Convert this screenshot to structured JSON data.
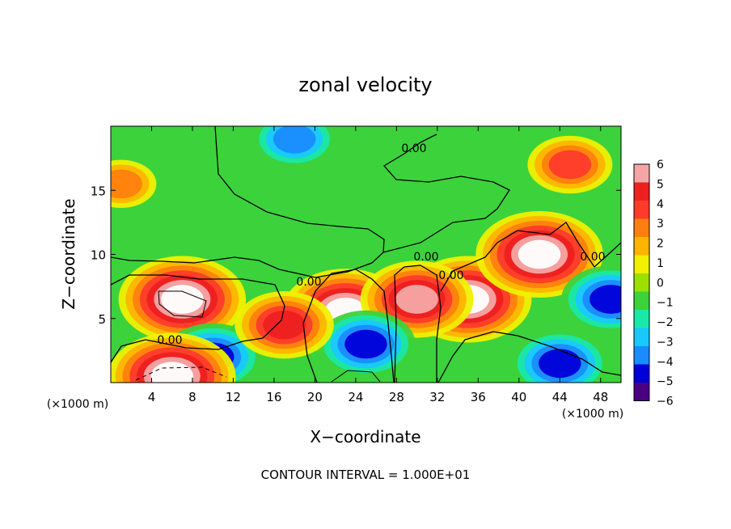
{
  "chart_data": {
    "type": "heatmap",
    "title": "zonal velocity",
    "xlabel": "X−coordinate",
    "ylabel": "Z−coordinate",
    "x_unit": "(×1000 m)",
    "x_unit_right": "(×1000 m)",
    "x_range": [
      0,
      50
    ],
    "y_range": [
      0,
      20
    ],
    "x_ticks": [
      4,
      8,
      12,
      16,
      20,
      24,
      28,
      32,
      36,
      40,
      44,
      48
    ],
    "y_ticks": [
      5,
      10,
      15
    ],
    "footer": "CONTOUR INTERVAL = 1.000E+01",
    "contour_labels": [
      "0.00",
      "0.00",
      "0.00",
      "0.00",
      "0.00",
      "0.00"
    ],
    "colorbar": {
      "levels": [
        -6,
        -5,
        -4,
        -3,
        -2,
        -1,
        0,
        1,
        2,
        3,
        4,
        5,
        6
      ],
      "labels": [
        "6",
        "5",
        "4",
        "3",
        "2",
        "1",
        "0",
        "−1",
        "−2",
        "−3",
        "−4",
        "−5",
        "−6"
      ],
      "colors": [
        "#f4a6a6",
        "#ee2020",
        "#ff3b2b",
        "#ff7f0e",
        "#ffb400",
        "#f0f000",
        "#9be000",
        "#3cd23c",
        "#19e8a8",
        "#19c8ff",
        "#1a8cff",
        "#0000d8",
        "#4b0082"
      ]
    },
    "features": [
      {
        "x": 18,
        "z": 19,
        "u": -3.5
      },
      {
        "x": 1,
        "z": 15.5,
        "u": 2.5
      },
      {
        "x": 45,
        "z": 17,
        "u": 3.5
      },
      {
        "x": 7,
        "z": 6.5,
        "u": 7
      },
      {
        "x": 23,
        "z": 5.5,
        "u": 7
      },
      {
        "x": 35,
        "z": 6.5,
        "u": 7
      },
      {
        "x": 42,
        "z": 10,
        "u": 7
      },
      {
        "x": 30,
        "z": 6.5,
        "u": 6
      },
      {
        "x": 49,
        "z": 6.5,
        "u": -5
      },
      {
        "x": 10,
        "z": 2,
        "u": -5
      },
      {
        "x": 25,
        "z": 3,
        "u": -5
      },
      {
        "x": 44,
        "z": 1.5,
        "u": -5
      },
      {
        "x": 17,
        "z": 4.5,
        "u": 5
      },
      {
        "x": 6,
        "z": 0.5,
        "u": 7
      }
    ]
  }
}
